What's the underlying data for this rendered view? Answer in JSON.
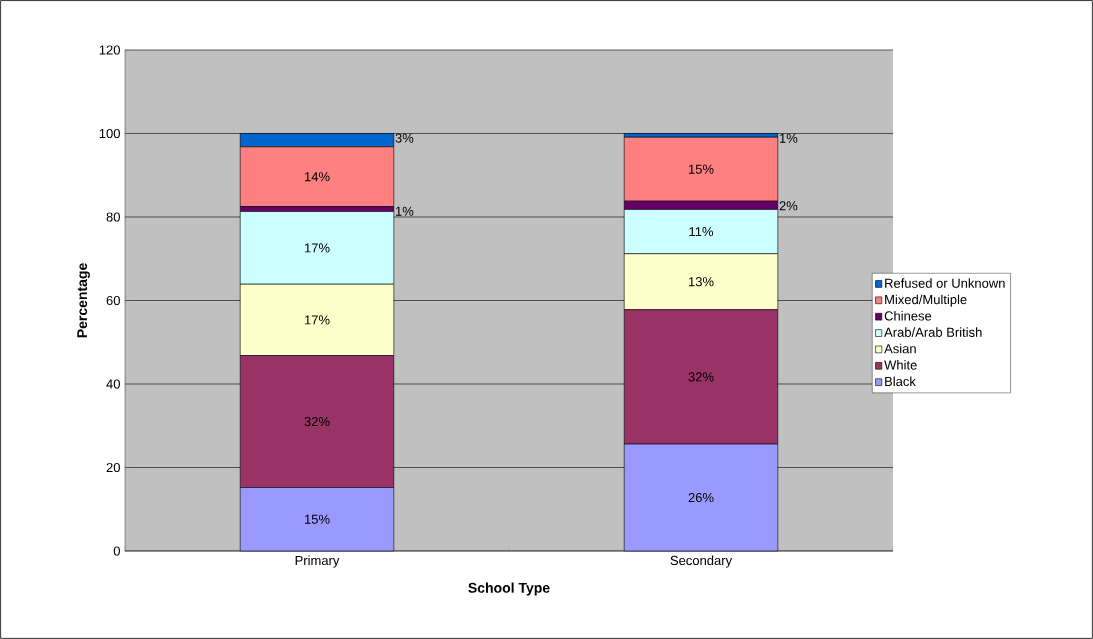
{
  "chart_data": {
    "type": "bar",
    "stacked": true,
    "xlabel": "School Type",
    "ylabel": "Percentage",
    "categories": [
      "Primary",
      "Secondary"
    ],
    "ylim": [
      0,
      120
    ],
    "yticks": [
      0,
      20,
      40,
      60,
      80,
      100,
      120
    ],
    "grid": "y",
    "legend": "right",
    "series": [
      {
        "name": "Black",
        "color": "#9999ff",
        "values": [
          15.2,
          25.6
        ],
        "value_labels": [
          "15%",
          "26%"
        ]
      },
      {
        "name": "White",
        "color": "#993366",
        "values": [
          31.6,
          32.2
        ],
        "value_labels": [
          "32%",
          "32%"
        ]
      },
      {
        "name": "Asian",
        "color": "#ffffcc",
        "values": [
          17.1,
          13.4
        ],
        "value_labels": [
          "17%",
          "13%"
        ]
      },
      {
        "name": "Arab/Arab British",
        "color": "#ccffff",
        "values": [
          17.4,
          10.6
        ],
        "value_labels": [
          "17%",
          "11%"
        ]
      },
      {
        "name": "Chinese",
        "color": "#660066",
        "values": [
          1.2,
          2.0
        ],
        "value_labels": [
          "1%",
          "2%"
        ]
      },
      {
        "name": "Mixed/Multiple",
        "color": "#ff8080",
        "values": [
          14.3,
          15.3
        ],
        "value_labels": [
          "14%",
          "15%"
        ]
      },
      {
        "name": "Refused or Unknown",
        "color": "#0066cc",
        "values": [
          3.2,
          0.9
        ],
        "value_labels": [
          "3%",
          "1%"
        ]
      }
    ]
  }
}
